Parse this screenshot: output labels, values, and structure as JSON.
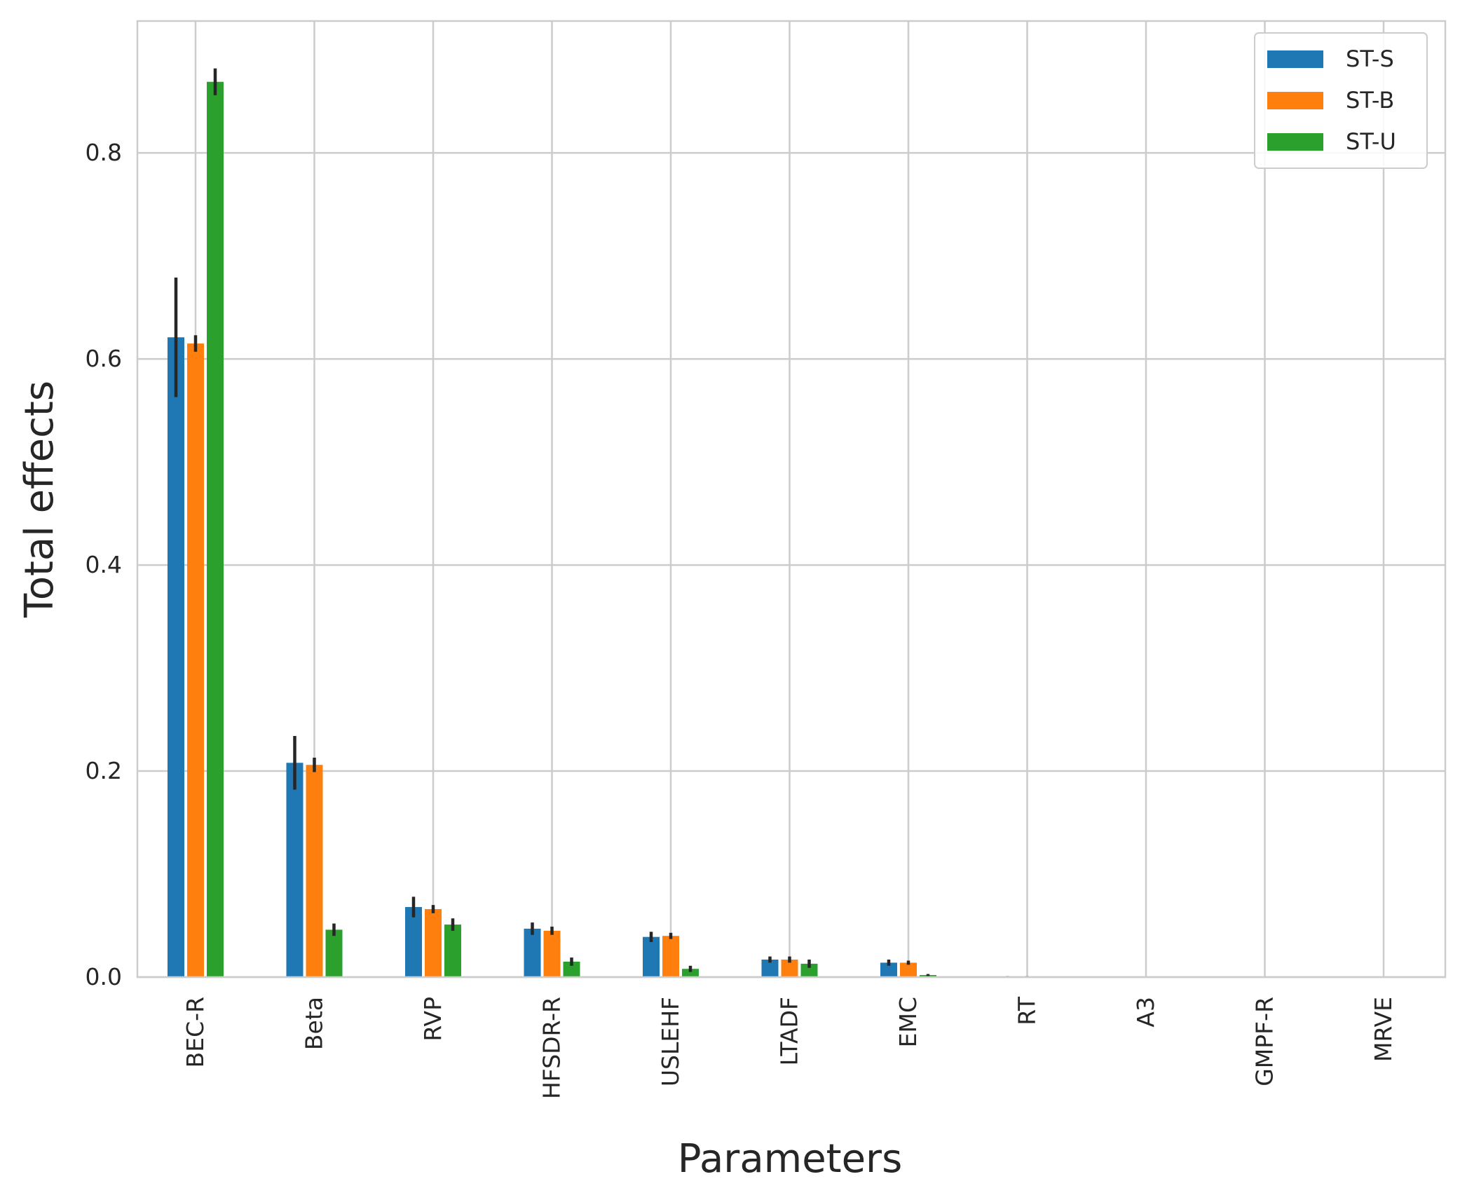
{
  "chart_data": {
    "type": "bar",
    "xlabel": "Parameters",
    "ylabel": "Total effects",
    "ylim": [
      0,
      0.928
    ],
    "yticks": [
      "0.0",
      "0.2",
      "0.4",
      "0.6",
      "0.8"
    ],
    "grid": true,
    "legend_position": "top-right",
    "categories": [
      "BEC-R",
      "Beta",
      "RVP",
      "HFSDR-R",
      "USLEHF",
      "LTADF",
      "EMC",
      "RT",
      "A3",
      "GMPF-R",
      "MRVE"
    ],
    "series": [
      {
        "name": "ST-S",
        "color": "#1f77b4",
        "values": [
          0.621,
          0.208,
          0.068,
          0.047,
          0.039,
          0.017,
          0.014,
          0.0006,
          0.0,
          0.0,
          0.0
        ],
        "errors": [
          0.058,
          0.026,
          0.01,
          0.006,
          0.005,
          0.003,
          0.003,
          0.0003,
          0.0,
          0.0,
          0.0
        ]
      },
      {
        "name": "ST-B",
        "color": "#ff7f0e",
        "values": [
          0.615,
          0.206,
          0.066,
          0.045,
          0.04,
          0.017,
          0.014,
          0.0006,
          0.0,
          0.0,
          0.0
        ],
        "errors": [
          0.008,
          0.007,
          0.004,
          0.004,
          0.003,
          0.003,
          0.002,
          0.0003,
          0.0,
          0.0,
          0.0
        ]
      },
      {
        "name": "ST-U",
        "color": "#2ca02c",
        "values": [
          0.869,
          0.046,
          0.051,
          0.015,
          0.008,
          0.013,
          0.002,
          0.0,
          0.0,
          0.0,
          0.0
        ],
        "errors": [
          0.013,
          0.006,
          0.006,
          0.004,
          0.003,
          0.004,
          0.001,
          0.0,
          0.0,
          0.0,
          0.0
        ]
      }
    ]
  }
}
